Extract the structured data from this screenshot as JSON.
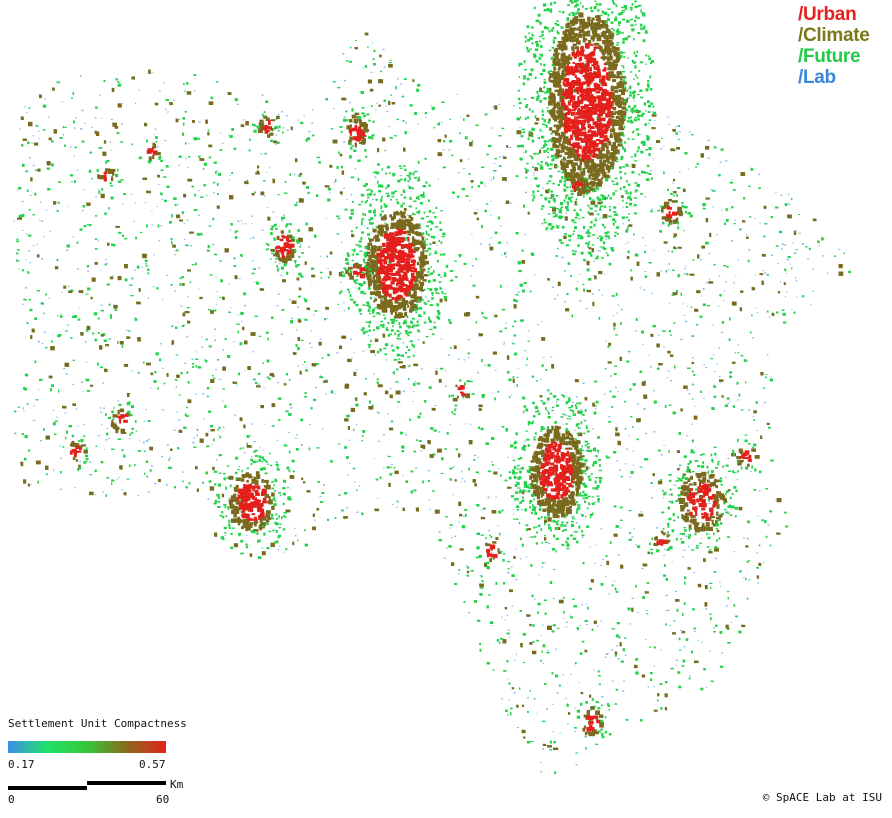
{
  "logo": {
    "lines": [
      {
        "text": "/Urban",
        "color": "#e4201c"
      },
      {
        "text": "/Climate",
        "color": "#7a7a1a"
      },
      {
        "text": "/Future",
        "color": "#22cc44"
      },
      {
        "text": "/Lab",
        "color": "#3a86d8"
      }
    ]
  },
  "legend": {
    "title": "Settlement Unit Compactness",
    "min_label": "0.17",
    "max_label": "0.57",
    "gradient_colors": [
      "#3d8fe8",
      "#22e06a",
      "#37c63a",
      "#8a6a1e",
      "#e3231d"
    ]
  },
  "scale_bar": {
    "zero_label": "0",
    "max_label": "60",
    "unit": "Km"
  },
  "credit": "© SpACE Lab at ISU",
  "map_colors": {
    "low": "#7fbce8",
    "mid": "#22d34a",
    "midhigh": "#7a6a1e",
    "high": "#e4201c"
  }
}
